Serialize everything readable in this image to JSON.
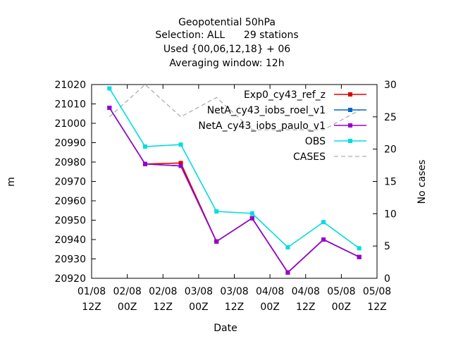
{
  "chart_data": {
    "type": "line",
    "title_lines": [
      "Geopotential 50hPa",
      "Selection: ALL      29 stations",
      "Used {00,06,12,18} + 06",
      "Averaging window: 12h"
    ],
    "xlabel": "Date",
    "ylabel": "m",
    "y2label": "No cases",
    "xlim": [
      0,
      7.5
    ],
    "ylim": [
      20920,
      21020
    ],
    "y2lim": [
      0,
      30
    ],
    "x_ticks": [
      {
        "x": 0,
        "line1": "01/08",
        "line2": "12Z"
      },
      {
        "x": 1,
        "line1": "02/08",
        "line2": "00Z"
      },
      {
        "x": 2,
        "line1": "02/08",
        "line2": "12Z"
      },
      {
        "x": 3,
        "line1": "03/08",
        "line2": "00Z"
      },
      {
        "x": 4,
        "line1": "03/08",
        "line2": "12Z"
      },
      {
        "x": 5,
        "line1": "04/08",
        "line2": "00Z"
      },
      {
        "x": 6,
        "line1": "04/08",
        "line2": "12Z"
      },
      {
        "x": 7,
        "line1": "05/08",
        "line2": "00Z"
      },
      {
        "x": 8,
        "line1": "05/08",
        "line2": "12Z"
      }
    ],
    "y_ticks": [
      20920,
      20930,
      20940,
      20950,
      20960,
      20970,
      20980,
      20990,
      21000,
      21010,
      21020
    ],
    "y2_ticks": [
      0,
      5,
      10,
      15,
      20,
      25,
      30
    ],
    "grid": false,
    "legend_position": "top-right",
    "series": [
      {
        "name": "Exp0_cy43_ref_z",
        "color": "#dd0000",
        "dash": false,
        "axis": "y",
        "x": [
          0.5,
          1.5,
          2.5,
          3.5,
          4.5,
          5.5,
          6.5,
          7.5
        ],
        "y": [
          21008,
          20979,
          20979.5,
          20939,
          20951,
          20923,
          20940,
          20931
        ]
      },
      {
        "name": "NetA_cy43_iobs_roel_v1",
        "color": "#0066cc",
        "dash": false,
        "axis": "y",
        "x": [
          0.5,
          1.5,
          2.5,
          3.5,
          4.5,
          5.5,
          6.5,
          7.5
        ],
        "y": [
          21008,
          20979,
          20978,
          20939,
          20951,
          20923,
          20940,
          20931
        ]
      },
      {
        "name": "NetA_cy43_iobs_paulo_v1",
        "color": "#9900cc",
        "dash": false,
        "axis": "y",
        "x": [
          0.5,
          1.5,
          2.5,
          3.5,
          4.5,
          5.5,
          6.5,
          7.5
        ],
        "y": [
          21008,
          20979,
          20978,
          20939,
          20951,
          20923,
          20940,
          20931
        ]
      },
      {
        "name": "OBS",
        "color": "#00dddd",
        "dash": false,
        "axis": "y",
        "x": [
          0.5,
          1.5,
          2.5,
          3.5,
          4.5,
          5.5,
          6.5,
          7.5
        ],
        "y": [
          21018,
          20988,
          20989,
          20954.5,
          20953.5,
          20936,
          20949,
          20935.5
        ]
      },
      {
        "name": "CASES",
        "color": "#999999",
        "dash": true,
        "axis": "y2",
        "x": [
          0.5,
          1.5,
          2.5,
          3.5,
          4.5,
          5.5,
          6.5,
          7.5
        ],
        "y": [
          25,
          30,
          25,
          28,
          23,
          23,
          23,
          26
        ]
      }
    ]
  }
}
